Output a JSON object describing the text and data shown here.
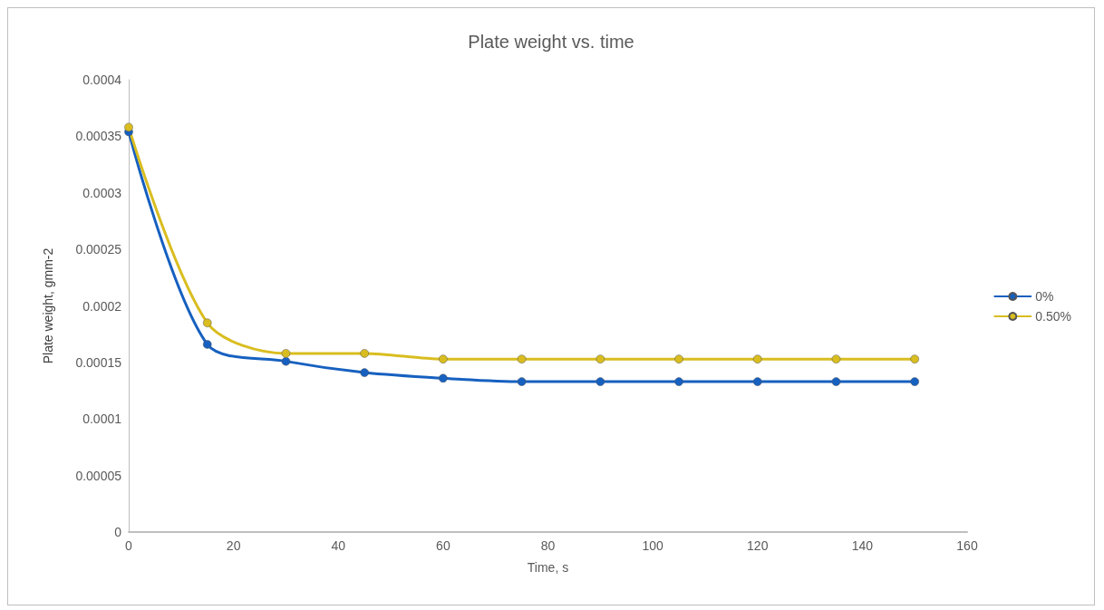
{
  "chart_data": {
    "type": "line",
    "title": "Plate weight vs. time",
    "xlabel": "Time, s",
    "ylabel": "Plate weight, gmm-2",
    "x": [
      0,
      15,
      30,
      45,
      60,
      75,
      90,
      105,
      120,
      135,
      150
    ],
    "series": [
      {
        "name": "0%",
        "color": "#1660c0",
        "values": [
          0.000354,
          0.000166,
          0.000151,
          0.000141,
          0.000136,
          0.000133,
          0.000133,
          0.000133,
          0.000133,
          0.000133,
          0.000133
        ]
      },
      {
        "name": "0.50%",
        "color": "#d9bd1f",
        "values": [
          0.000358,
          0.000185,
          0.000158,
          0.000158,
          0.000153,
          0.000153,
          0.000153,
          0.000153,
          0.000153,
          0.000153,
          0.000153
        ]
      }
    ],
    "xlim": [
      0,
      160
    ],
    "xticks": [
      0,
      20,
      40,
      60,
      80,
      100,
      120,
      140,
      160
    ],
    "ylim": [
      0,
      0.0004
    ],
    "yticks": [
      0,
      {
        "value": 5e-05,
        "label": "0.00005"
      },
      0.0001,
      0.00015,
      0.0002,
      0.00025,
      0.0003,
      0.00035,
      0.0004
    ],
    "grid": false,
    "legend": "right",
    "marker": "circle",
    "line_style": "solid"
  }
}
